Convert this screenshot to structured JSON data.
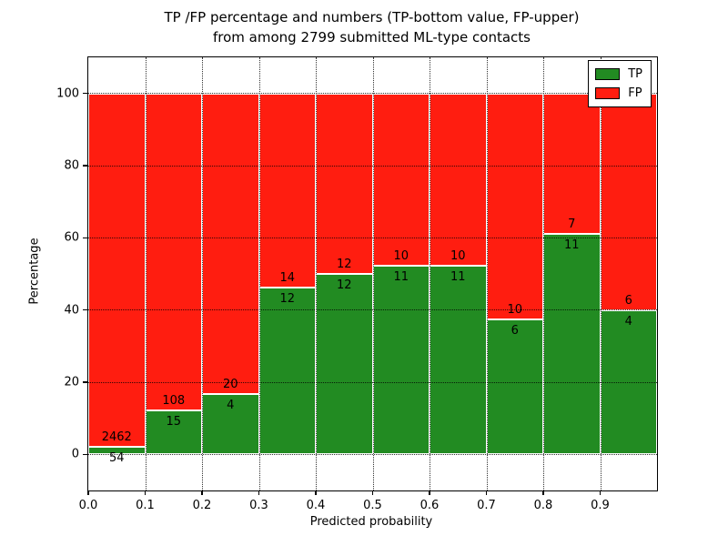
{
  "title": {
    "line1": "TP /FP percentage and numbers (TP-bottom value, FP-upper)",
    "line2": "from among 2799 submitted ML-type contacts"
  },
  "chart_data": {
    "type": "bar",
    "stacked": true,
    "normalized_to_percent": true,
    "title": "TP /FP percentage and numbers (TP-bottom value, FP-upper) from among 2799 submitted ML-type contacts",
    "total_contacts": 2799,
    "xlabel": "Predicted probability",
    "ylabel": "Percentage",
    "bin_edges": [
      0.0,
      0.1,
      0.2,
      0.3,
      0.4,
      0.5,
      0.6,
      0.7,
      0.8,
      0.9,
      1.0
    ],
    "categories": [
      "0.0-0.1",
      "0.1-0.2",
      "0.2-0.3",
      "0.3-0.4",
      "0.4-0.5",
      "0.5-0.6",
      "0.6-0.7",
      "0.7-0.8",
      "0.8-0.9",
      "0.9-1.0"
    ],
    "series": [
      {
        "name": "TP",
        "color": "#228b22",
        "values": [
          54,
          15,
          4,
          12,
          12,
          11,
          11,
          6,
          11,
          4
        ]
      },
      {
        "name": "FP",
        "color": "#ff1d10",
        "values": [
          2462,
          108,
          20,
          14,
          12,
          10,
          10,
          10,
          7,
          6
        ]
      }
    ],
    "tp_percent_by_bin": [
      2.1,
      12.2,
      16.7,
      46.2,
      50.0,
      52.4,
      52.4,
      37.5,
      61.1,
      40.0
    ],
    "xticks": [
      "0.0",
      "0.1",
      "0.2",
      "0.3",
      "0.4",
      "0.5",
      "0.6",
      "0.7",
      "0.8",
      "0.9"
    ],
    "yticks": [
      0,
      20,
      40,
      60,
      80,
      100
    ],
    "ylim": [
      -10,
      110
    ],
    "grid": "dotted",
    "bar_edge_color": "#ffffff",
    "legend_position": "upper right"
  }
}
